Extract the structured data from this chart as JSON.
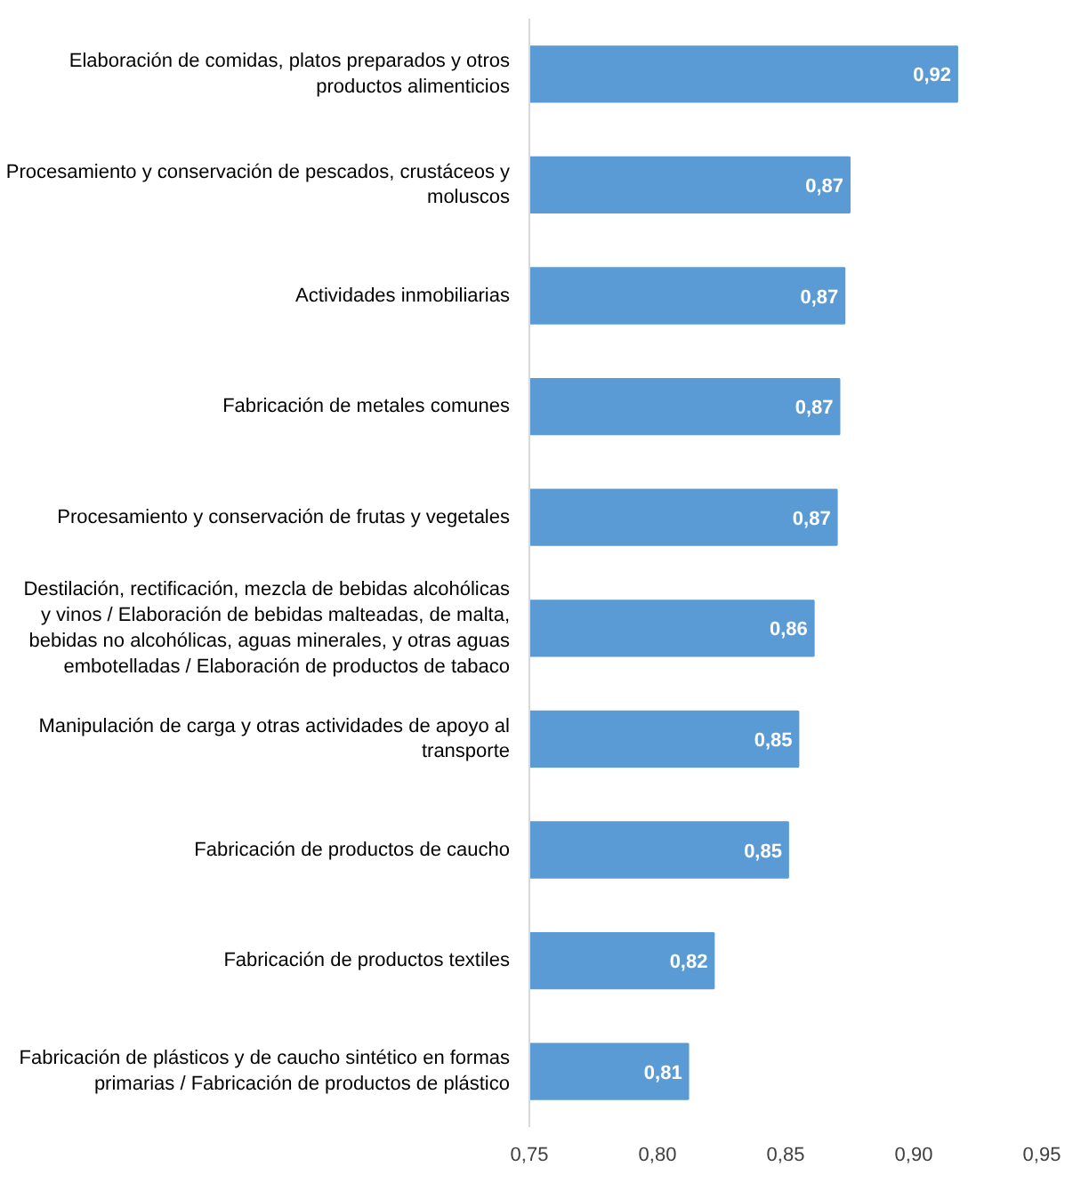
{
  "chart_data": {
    "type": "bar",
    "orientation": "horizontal",
    "categories": [
      "Elaboración de comidas, platos preparados y otros productos alimenticios",
      "Procesamiento y conservación de pescados, crustáceos y moluscos",
      "Actividades inmobiliarias",
      "Fabricación de metales comunes",
      "Procesamiento y conservación de frutas y vegetales",
      "Destilación, rectificación, mezcla de bebidas alcohólicas y vinos / Elaboración de bebidas malteadas, de malta, bebidas no alcohólicas, aguas minerales, y otras aguas embotelladas / Elaboración de productos de tabaco",
      "Manipulación de carga y otras actividades de apoyo al transporte",
      "Fabricación de productos de caucho",
      "Fabricación de productos textiles",
      "Fabricación de plásticos y de caucho sintético en formas primarias / Fabricación de productos de plástico"
    ],
    "values": [
      0.917,
      0.875,
      0.873,
      0.871,
      0.87,
      0.861,
      0.855,
      0.851,
      0.822,
      0.812
    ],
    "value_labels": [
      "0,92",
      "0,87",
      "0,87",
      "0,87",
      "0,87",
      "0,86",
      "0,85",
      "0,85",
      "0,82",
      "0,81"
    ],
    "color": "#5b9bd5",
    "xlim": [
      0.75,
      0.95
    ],
    "xticks": [
      {
        "value": 0.75,
        "label": "0,75"
      },
      {
        "value": 0.8,
        "label": "0,80"
      },
      {
        "value": 0.85,
        "label": "0,85"
      },
      {
        "value": 0.9,
        "label": "0,90"
      },
      {
        "value": 0.95,
        "label": "0,95"
      }
    ],
    "grid": false
  }
}
